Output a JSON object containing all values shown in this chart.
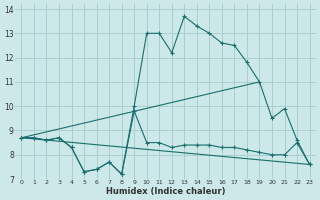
{
  "xlabel": "Humidex (Indice chaleur)",
  "bg_color": "#cce8e8",
  "grid_color": "#aacece",
  "line_color": "#1a6e6e",
  "xlim": [
    -0.5,
    23.5
  ],
  "ylim": [
    7,
    14.2
  ],
  "xticks": [
    0,
    1,
    2,
    3,
    4,
    5,
    6,
    7,
    8,
    9,
    10,
    11,
    12,
    13,
    14,
    15,
    16,
    17,
    18,
    19,
    20,
    21,
    22,
    23
  ],
  "yticks": [
    7,
    8,
    9,
    10,
    11,
    12,
    13,
    14
  ],
  "series": [
    {
      "x": [
        0,
        1,
        2,
        3,
        4,
        5,
        6,
        7,
        8,
        9,
        10,
        11,
        12,
        13,
        14,
        15,
        16,
        17,
        18,
        19,
        20,
        21,
        22,
        23
      ],
      "y": [
        8.7,
        8.7,
        8.6,
        8.7,
        8.3,
        7.3,
        7.4,
        7.7,
        7.2,
        9.8,
        8.5,
        8.5,
        8.3,
        8.4,
        8.4,
        8.4,
        8.3,
        8.3,
        8.2,
        8.1,
        8.0,
        8.0,
        8.5,
        7.6
      ],
      "marker": true
    },
    {
      "x": [
        0,
        1,
        2,
        3,
        4,
        5,
        6,
        7,
        8,
        9,
        10,
        11,
        12,
        13,
        14,
        15,
        16,
        17,
        18,
        19,
        20,
        21,
        22,
        23
      ],
      "y": [
        8.7,
        8.7,
        8.6,
        8.7,
        8.3,
        7.3,
        7.4,
        7.7,
        7.2,
        10.0,
        13.0,
        13.0,
        12.2,
        13.7,
        13.3,
        13.0,
        12.6,
        12.5,
        11.8,
        11.0,
        9.5,
        9.9,
        8.6,
        7.6
      ],
      "marker": true
    },
    {
      "x": [
        0,
        19
      ],
      "y": [
        8.7,
        11.0
      ],
      "marker": false
    },
    {
      "x": [
        0,
        23
      ],
      "y": [
        8.7,
        7.6
      ],
      "marker": false
    }
  ]
}
